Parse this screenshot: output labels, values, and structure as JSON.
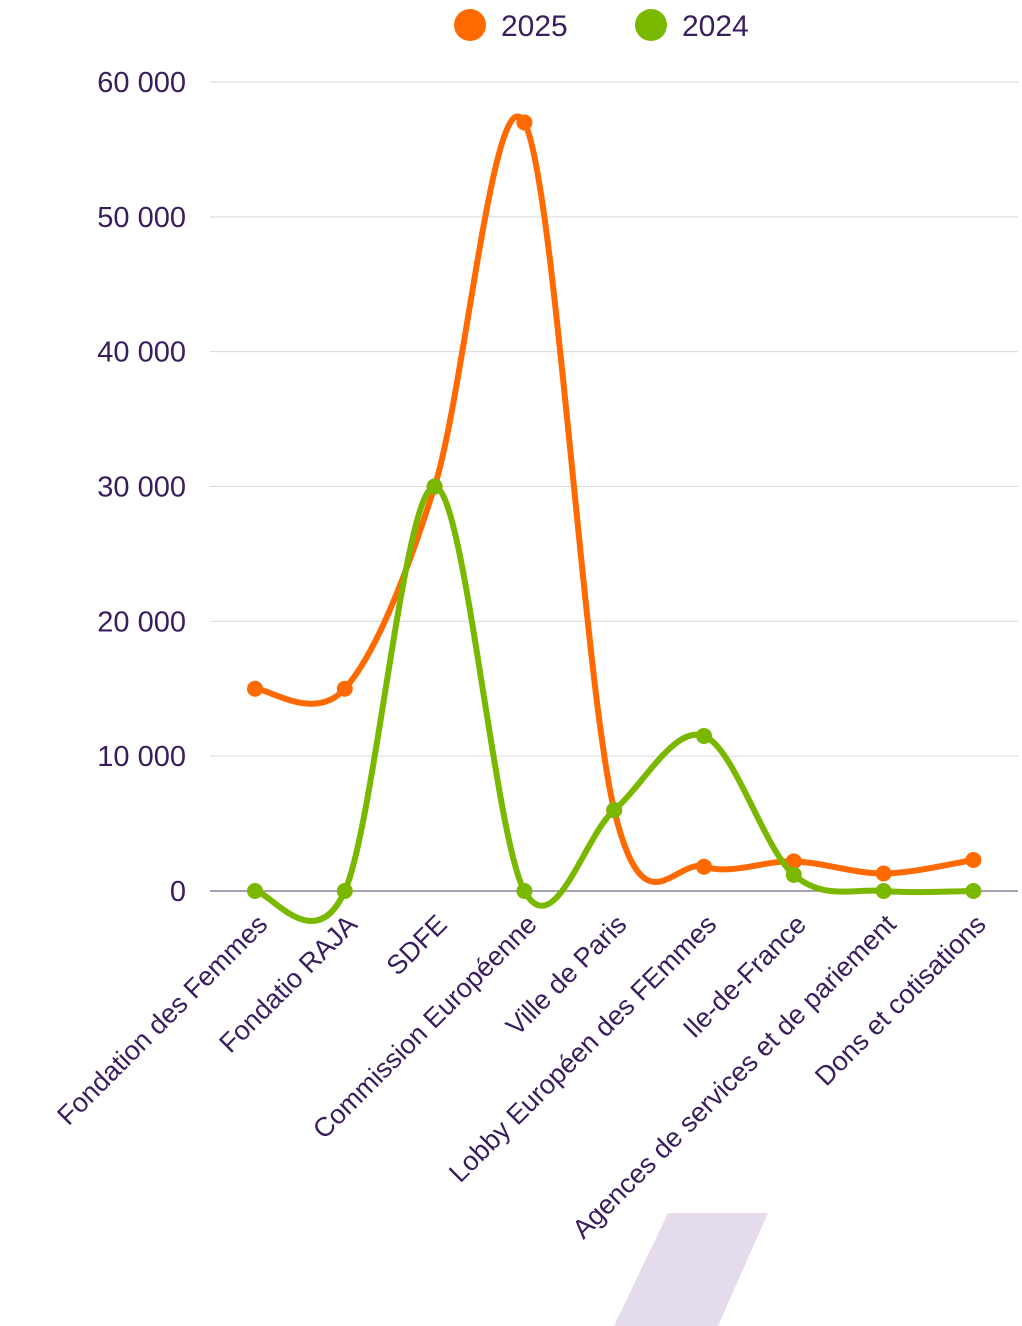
{
  "chart_data": {
    "type": "line",
    "smooth": true,
    "title": "",
    "xlabel": "",
    "ylabel": "",
    "categories": [
      "Fondation des Femmes",
      "Fondatio RAJA",
      "SDFE",
      "Commission Européenne",
      "Ville de Paris",
      "Lobby Européen des FEmmes",
      "Ile-de-France",
      "Agences de services et de pariement",
      "Dons et cotisations"
    ],
    "series": [
      {
        "name": "2025",
        "color": "#ff6a00",
        "values": [
          15000,
          15000,
          30000,
          57000,
          6000,
          1800,
          2200,
          1300,
          2300
        ]
      },
      {
        "name": "2024",
        "color": "#7ab800",
        "values": [
          0,
          0,
          30000,
          0,
          6000,
          11500,
          1200,
          0,
          0
        ]
      }
    ],
    "ylim": [
      0,
      60000
    ],
    "yticks": [
      0,
      10000,
      20000,
      30000,
      40000,
      50000,
      60000
    ],
    "ytick_labels": [
      "0",
      "10 000",
      "20 000",
      "30 000",
      "40 000",
      "50 000",
      "60 000"
    ],
    "grid": true,
    "legend_position": "top-center"
  },
  "colors": {
    "text": "#3a1d5c",
    "grid": "#d9d9d9",
    "axis": "#8a7fa0",
    "decoration": "#e4dced"
  }
}
